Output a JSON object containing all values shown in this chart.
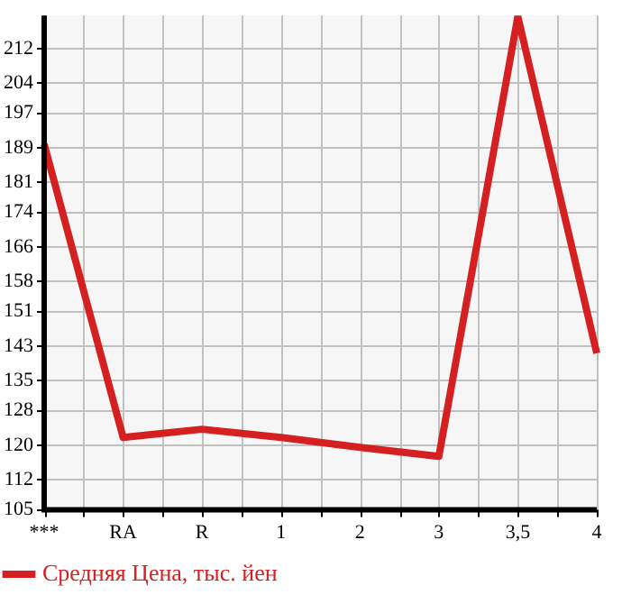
{
  "chart_data": {
    "type": "line",
    "categories": [
      "***",
      "RA",
      "R",
      "1",
      "2",
      "3",
      "3,5",
      "4"
    ],
    "series": [
      {
        "name": "Средняя Цена, тыс. йен",
        "color": "#d42020",
        "values": [
          189.8,
          121.8,
          123.7,
          121.8,
          119.5,
          117.4,
          219.4,
          141.3
        ]
      }
    ],
    "ylim": [
      105,
      219.64
    ],
    "yticks": [
      105,
      112,
      120,
      128,
      135,
      143,
      151,
      158,
      166,
      174,
      181,
      189,
      197,
      204,
      212
    ],
    "grid": true,
    "legend": "bottom left",
    "marker": "none",
    "line_style": "solid"
  }
}
